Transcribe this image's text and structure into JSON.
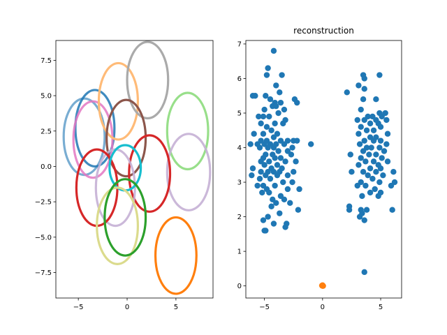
{
  "chart_data": [
    {
      "type": "scatter",
      "title": "",
      "xlabel": "",
      "ylabel": "",
      "xlim": [
        -7.3,
        8.8
      ],
      "ylim": [
        -9.3,
        8.9
      ],
      "xticks": [
        -5,
        0,
        5
      ],
      "yticks": [
        -7.5,
        -5.0,
        -2.5,
        0.0,
        2.5,
        5.0,
        7.5
      ],
      "grid": false,
      "series": [
        {
          "kind": "ellipse",
          "color": "#1f77b4",
          "alpha": 0.6,
          "cx": -4.4,
          "cy": 2.1,
          "rx": 2.1,
          "ry": 2.7
        },
        {
          "kind": "ellipse",
          "color": "#1f77b4",
          "alpha": 0.85,
          "cx": -3.3,
          "cy": 2.7,
          "rx": 2.0,
          "ry": 2.7
        },
        {
          "kind": "ellipse",
          "color": "#e377c2",
          "alpha": 0.85,
          "cx": -3.5,
          "cy": 1.9,
          "rx": 2.0,
          "ry": 2.7
        },
        {
          "kind": "ellipse",
          "color": "#ffbb78",
          "alpha": 1.0,
          "cx": -0.9,
          "cy": 4.6,
          "rx": 2.0,
          "ry": 2.7
        },
        {
          "kind": "ellipse",
          "color": "#aaaaaa",
          "alpha": 1.0,
          "cx": 2.1,
          "cy": 6.1,
          "rx": 2.1,
          "ry": 2.7
        },
        {
          "kind": "ellipse",
          "color": "#98df8a",
          "alpha": 1.0,
          "cx": 6.2,
          "cy": 2.5,
          "rx": 2.1,
          "ry": 2.7
        },
        {
          "kind": "ellipse",
          "color": "#8c564b",
          "alpha": 1.0,
          "cx": -0.1,
          "cy": 2.0,
          "rx": 2.0,
          "ry": 2.7
        },
        {
          "kind": "ellipse",
          "color": "#c5b0d5",
          "alpha": 0.9,
          "cx": 6.3,
          "cy": -0.4,
          "rx": 2.2,
          "ry": 2.7
        },
        {
          "kind": "ellipse",
          "color": "#d62728",
          "alpha": 1.0,
          "cx": 2.3,
          "cy": -0.5,
          "rx": 2.1,
          "ry": 2.7
        },
        {
          "kind": "ellipse",
          "color": "#c5b0d5",
          "alpha": 0.9,
          "cx": -1.2,
          "cy": -1.5,
          "rx": 2.0,
          "ry": 2.7
        },
        {
          "kind": "ellipse",
          "color": "#d62728",
          "alpha": 1.0,
          "cx": -3.1,
          "cy": -1.5,
          "rx": 2.1,
          "ry": 2.7
        },
        {
          "kind": "ellipse",
          "color": "#17becf",
          "alpha": 1.0,
          "cx": -0.2,
          "cy": -0.1,
          "rx": 1.6,
          "ry": 1.6
        },
        {
          "kind": "ellipse",
          "color": "#dbdb8d",
          "alpha": 1.0,
          "cx": -1.0,
          "cy": -4.2,
          "rx": 2.1,
          "ry": 2.7
        },
        {
          "kind": "ellipse",
          "color": "#2ca02c",
          "alpha": 1.0,
          "cx": -0.2,
          "cy": -3.6,
          "rx": 2.1,
          "ry": 2.7
        },
        {
          "kind": "ellipse",
          "color": "#ff7f0e",
          "alpha": 1.0,
          "cx": 5.0,
          "cy": -6.3,
          "rx": 2.1,
          "ry": 2.7
        }
      ]
    },
    {
      "type": "scatter",
      "title": "reconstruction",
      "xlabel": "",
      "ylabel": "",
      "xlim": [
        -6.6,
        6.8
      ],
      "ylim": [
        -0.35,
        7.1
      ],
      "xticks": [
        -5,
        0,
        5
      ],
      "yticks": [
        0,
        1,
        2,
        3,
        4,
        5,
        6,
        7
      ],
      "grid": false,
      "series": [
        {
          "color": "#1f77b4",
          "points": [
            [
              -4.2,
              6.8
            ],
            [
              -4.7,
              6.3
            ],
            [
              -4.8,
              6.1
            ],
            [
              -3.5,
              6.1
            ],
            [
              -4.0,
              5.8
            ],
            [
              -3.7,
              5.6
            ],
            [
              -4.9,
              5.5
            ],
            [
              -5.8,
              5.5
            ],
            [
              -6.0,
              5.5
            ],
            [
              -4.5,
              5.4
            ],
            [
              -2.4,
              5.4
            ],
            [
              -2.2,
              5.3
            ],
            [
              -4.1,
              5.3
            ],
            [
              -3.6,
              5.3
            ],
            [
              -4.3,
              5.2
            ],
            [
              -4.0,
              5.2
            ],
            [
              -5.0,
              5.1
            ],
            [
              -3.3,
              5.1
            ],
            [
              -3.8,
              5.0
            ],
            [
              -5.5,
              4.9
            ],
            [
              -5.1,
              4.9
            ],
            [
              -4.6,
              4.9
            ],
            [
              -3.2,
              4.8
            ],
            [
              -5.3,
              4.7
            ],
            [
              -4.1,
              4.7
            ],
            [
              -3.4,
              4.7
            ],
            [
              -4.8,
              4.6
            ],
            [
              -4.4,
              4.5
            ],
            [
              -5.1,
              4.4
            ],
            [
              -3.9,
              4.4
            ],
            [
              -5.9,
              4.4
            ],
            [
              -4.2,
              4.3
            ],
            [
              -3.0,
              4.2
            ],
            [
              -2.5,
              4.2
            ],
            [
              -2.2,
              4.2
            ],
            [
              -5.3,
              4.2
            ],
            [
              -4.8,
              4.2
            ],
            [
              -3.6,
              4.2
            ],
            [
              -1.0,
              4.1
            ],
            [
              -6.2,
              4.1
            ],
            [
              -5.6,
              4.1
            ],
            [
              -5.0,
              4.1
            ],
            [
              -4.5,
              4.1
            ],
            [
              -4.0,
              4.1
            ],
            [
              -3.3,
              4.1
            ],
            [
              -2.6,
              4.0
            ],
            [
              -5.4,
              4.0
            ],
            [
              -4.7,
              4.0
            ],
            [
              -4.2,
              4.0
            ],
            [
              -3.8,
              3.9
            ],
            [
              -3.0,
              3.9
            ],
            [
              -4.9,
              3.8
            ],
            [
              -4.3,
              3.8
            ],
            [
              -2.7,
              3.8
            ],
            [
              -5.1,
              3.7
            ],
            [
              -3.6,
              3.7
            ],
            [
              -4.1,
              3.7
            ],
            [
              -5.3,
              3.6
            ],
            [
              -4.6,
              3.6
            ],
            [
              -3.2,
              3.6
            ],
            [
              -2.3,
              3.6
            ],
            [
              -5.0,
              3.5
            ],
            [
              -3.9,
              3.5
            ],
            [
              -4.4,
              3.4
            ],
            [
              -3.5,
              3.4
            ],
            [
              -6.0,
              3.4
            ],
            [
              -4.7,
              3.3
            ],
            [
              -4.2,
              3.3
            ],
            [
              -3.7,
              3.3
            ],
            [
              -5.3,
              3.3
            ],
            [
              -2.5,
              3.3
            ],
            [
              -6.1,
              3.2
            ],
            [
              -4.9,
              3.2
            ],
            [
              -3.9,
              3.2
            ],
            [
              -3.0,
              3.2
            ],
            [
              -5.4,
              3.1
            ],
            [
              -4.5,
              3.1
            ],
            [
              -2.6,
              3.0
            ],
            [
              -3.4,
              3.0
            ],
            [
              -5.1,
              2.9
            ],
            [
              -4.1,
              2.9
            ],
            [
              -5.6,
              2.9
            ],
            [
              -3.0,
              2.8
            ],
            [
              -2.0,
              2.8
            ],
            [
              -4.8,
              2.8
            ],
            [
              -4.6,
              2.7
            ],
            [
              -5.2,
              2.7
            ],
            [
              -3.6,
              2.6
            ],
            [
              -4.3,
              2.5
            ],
            [
              -3.3,
              2.5
            ],
            [
              -4.0,
              2.4
            ],
            [
              -2.8,
              2.4
            ],
            [
              -4.4,
              2.3
            ],
            [
              -2.1,
              2.2
            ],
            [
              -3.7,
              2.1
            ],
            [
              -4.7,
              2.0
            ],
            [
              -5.1,
              1.9
            ],
            [
              -3.1,
              1.8
            ],
            [
              -4.2,
              1.8
            ],
            [
              -3.2,
              1.7
            ],
            [
              -5.0,
              1.6
            ],
            [
              -4.9,
              1.6
            ],
            [
              3.5,
              6.1
            ],
            [
              4.9,
              6.1
            ],
            [
              3.6,
              6.0
            ],
            [
              3.1,
              5.8
            ],
            [
              3.6,
              5.7
            ],
            [
              2.1,
              5.6
            ],
            [
              3.5,
              5.4
            ],
            [
              4.6,
              5.4
            ],
            [
              3.3,
              5.1
            ],
            [
              5.4,
              5.0
            ],
            [
              4.9,
              5.0
            ],
            [
              5.1,
              4.9
            ],
            [
              4.3,
              4.9
            ],
            [
              3.9,
              4.9
            ],
            [
              3.0,
              4.8
            ],
            [
              4.6,
              4.8
            ],
            [
              5.5,
              4.8
            ],
            [
              3.6,
              4.8
            ],
            [
              4.1,
              4.7
            ],
            [
              4.8,
              4.7
            ],
            [
              3.3,
              4.6
            ],
            [
              5.0,
              4.6
            ],
            [
              4.4,
              4.5
            ],
            [
              3.8,
              4.5
            ],
            [
              5.6,
              4.4
            ],
            [
              3.1,
              4.4
            ],
            [
              4.6,
              4.3
            ],
            [
              4.1,
              4.3
            ],
            [
              3.6,
              4.2
            ],
            [
              5.0,
              4.2
            ],
            [
              4.4,
              4.2
            ],
            [
              5.5,
              4.1
            ],
            [
              3.2,
              4.1
            ],
            [
              3.8,
              4.0
            ],
            [
              4.9,
              4.0
            ],
            [
              4.2,
              4.0
            ],
            [
              3.5,
              3.9
            ],
            [
              5.3,
              3.9
            ],
            [
              4.6,
              3.8
            ],
            [
              2.4,
              3.8
            ],
            [
              4.0,
              3.8
            ],
            [
              3.3,
              3.7
            ],
            [
              5.1,
              3.7
            ],
            [
              5.6,
              3.6
            ],
            [
              3.7,
              3.6
            ],
            [
              4.4,
              3.6
            ],
            [
              4.8,
              3.5
            ],
            [
              3.1,
              3.5
            ],
            [
              4.1,
              3.4
            ],
            [
              5.0,
              3.4
            ],
            [
              2.5,
              3.3
            ],
            [
              3.5,
              3.3
            ],
            [
              4.6,
              3.3
            ],
            [
              6.1,
              3.3
            ],
            [
              3.9,
              3.2
            ],
            [
              5.2,
              3.2
            ],
            [
              4.3,
              3.1
            ],
            [
              3.3,
              3.0
            ],
            [
              4.9,
              3.0
            ],
            [
              3.0,
              2.9
            ],
            [
              6.2,
              3.0
            ],
            [
              5.9,
              2.9
            ],
            [
              3.7,
              2.9
            ],
            [
              4.5,
              2.8
            ],
            [
              4.1,
              2.7
            ],
            [
              5.0,
              2.7
            ],
            [
              3.4,
              2.6
            ],
            [
              4.8,
              2.6
            ],
            [
              2.3,
              2.3
            ],
            [
              3.3,
              2.2
            ],
            [
              3.8,
              2.2
            ],
            [
              3.4,
              2.1
            ],
            [
              6.0,
              2.2
            ],
            [
              2.3,
              2.2
            ],
            [
              3.2,
              2.0
            ],
            [
              3.6,
              1.9
            ],
            [
              3.6,
              0.4
            ]
          ]
        },
        {
          "color": "#ff7f0e",
          "points": [
            [
              0.0,
              0.0
            ],
            [
              0.0,
              0.02
            ],
            [
              0.05,
              0.0
            ],
            [
              -0.05,
              0.01
            ]
          ]
        }
      ]
    }
  ]
}
